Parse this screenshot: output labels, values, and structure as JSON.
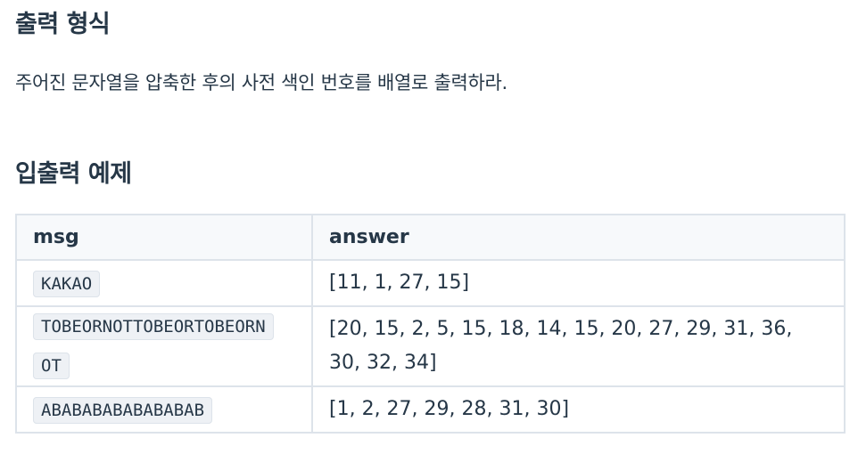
{
  "sections": {
    "output_heading": "출력 형식",
    "output_text": "주어진 문자열을 압축한 후의 사전 색인 번호를 배열로 출력하라.",
    "examples_heading": "입출력 예제"
  },
  "examples_table": {
    "headers": [
      "msg",
      "answer"
    ],
    "rows": [
      {
        "msg": "KAKAO",
        "answer": "[11, 1, 27, 15]"
      },
      {
        "msg": "TOBEORNOTTOBEORTOBEORNOT",
        "answer": "[20, 15, 2, 5, 15, 18, 14, 15, 20, 27, 29, 31, 36, 30, 32, 34]"
      },
      {
        "msg": "ABABABABABABABAB",
        "answer": "[1, 2, 27, 29, 28, 31, 30]"
      }
    ]
  },
  "colors": {
    "text": "#263747",
    "table_border": "#dde3ea",
    "header_bg": "#f7f9fb",
    "code_bg": "#eef1f5"
  }
}
